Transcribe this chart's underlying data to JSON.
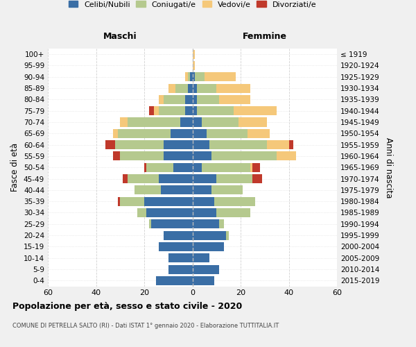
{
  "age_groups": [
    "0-4",
    "5-9",
    "10-14",
    "15-19",
    "20-24",
    "25-29",
    "30-34",
    "35-39",
    "40-44",
    "45-49",
    "50-54",
    "55-59",
    "60-64",
    "65-69",
    "70-74",
    "75-79",
    "80-84",
    "85-89",
    "90-94",
    "95-99",
    "100+"
  ],
  "birth_years": [
    "2015-2019",
    "2010-2014",
    "2005-2009",
    "2000-2004",
    "1995-1999",
    "1990-1994",
    "1985-1989",
    "1980-1984",
    "1975-1979",
    "1970-1974",
    "1965-1969",
    "1960-1964",
    "1955-1959",
    "1950-1954",
    "1945-1949",
    "1940-1944",
    "1935-1939",
    "1930-1934",
    "1925-1929",
    "1920-1924",
    "≤ 1919"
  ],
  "colors": {
    "celibe": "#3a6ea5",
    "coniugato": "#b5c98e",
    "vedovo": "#f5c87a",
    "divorziato": "#c0392b"
  },
  "maschi": {
    "celibe": [
      15,
      10,
      10,
      14,
      12,
      17,
      19,
      20,
      13,
      14,
      8,
      12,
      12,
      9,
      5,
      3,
      3,
      2,
      1,
      0,
      0
    ],
    "coniugato": [
      0,
      0,
      0,
      0,
      0,
      1,
      4,
      10,
      11,
      13,
      11,
      18,
      20,
      22,
      22,
      11,
      9,
      5,
      1,
      0,
      0
    ],
    "vedovo": [
      0,
      0,
      0,
      0,
      0,
      0,
      0,
      0,
      0,
      0,
      0,
      0,
      0,
      2,
      3,
      2,
      2,
      3,
      1,
      0,
      0
    ],
    "divorziato": [
      0,
      0,
      0,
      0,
      0,
      0,
      0,
      1,
      0,
      2,
      1,
      3,
      4,
      0,
      0,
      2,
      0,
      0,
      0,
      0,
      0
    ]
  },
  "femmine": {
    "celibe": [
      9,
      11,
      7,
      13,
      14,
      11,
      10,
      9,
      8,
      10,
      4,
      8,
      7,
      6,
      4,
      2,
      2,
      2,
      1,
      0,
      0
    ],
    "coniugato": [
      0,
      0,
      0,
      0,
      1,
      2,
      14,
      17,
      13,
      15,
      20,
      27,
      24,
      17,
      15,
      15,
      9,
      8,
      4,
      0,
      0
    ],
    "vedovo": [
      0,
      0,
      0,
      0,
      0,
      0,
      0,
      0,
      0,
      0,
      1,
      8,
      9,
      9,
      12,
      18,
      13,
      14,
      13,
      1,
      1
    ],
    "divorziato": [
      0,
      0,
      0,
      0,
      0,
      0,
      0,
      0,
      0,
      4,
      3,
      0,
      2,
      0,
      0,
      0,
      0,
      0,
      0,
      0,
      0
    ]
  },
  "title": "Popolazione per età, sesso e stato civile - 2020",
  "subtitle": "COMUNE DI PETRELLA SALTO (RI) - Dati ISTAT 1° gennaio 2020 - Elaborazione TUTTITALIA.IT",
  "xlabel_left": "Maschi",
  "xlabel_right": "Femmine",
  "ylabel_left": "Fasce di età",
  "ylabel_right": "Anni di nascita",
  "xlim": 60,
  "legend_labels": [
    "Celibi/Nubili",
    "Coniugati/e",
    "Vedovi/e",
    "Divorziati/e"
  ],
  "bg_color": "#f0f0f0",
  "plot_bg_color": "#ffffff"
}
